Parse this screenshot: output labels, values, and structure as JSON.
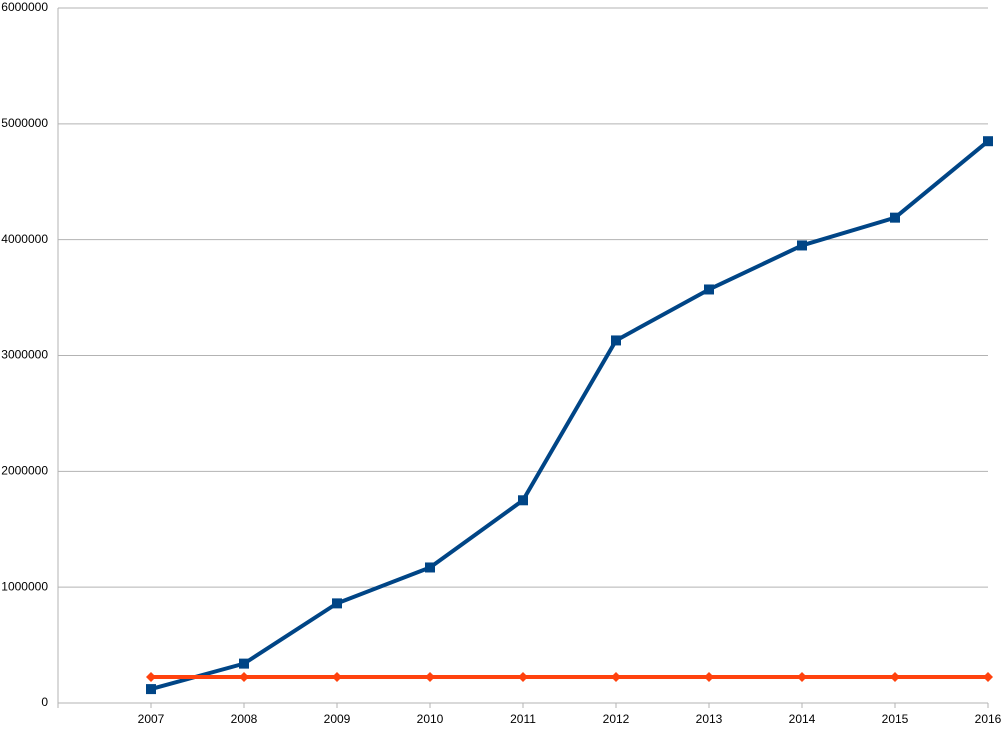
{
  "chart_data": {
    "type": "line",
    "categories": [
      "2007",
      "2008",
      "2009",
      "2010",
      "2011",
      "2012",
      "2013",
      "2014",
      "2015",
      "2016"
    ],
    "series": [
      {
        "color": "#004586",
        "marker": "square",
        "values": [
          120000,
          340000,
          860000,
          1170000,
          1750000,
          3130000,
          3570000,
          3950000,
          4190000,
          4850000
        ]
      },
      {
        "color": "#ff420e",
        "marker": "diamond",
        "values": [
          225000,
          225000,
          225000,
          225000,
          225000,
          225000,
          225000,
          225000,
          225000,
          225000
        ]
      }
    ],
    "ylim": [
      0,
      6000000
    ],
    "yticks": [
      0,
      1000000,
      2000000,
      3000000,
      4000000,
      5000000,
      6000000
    ],
    "grid": true
  }
}
